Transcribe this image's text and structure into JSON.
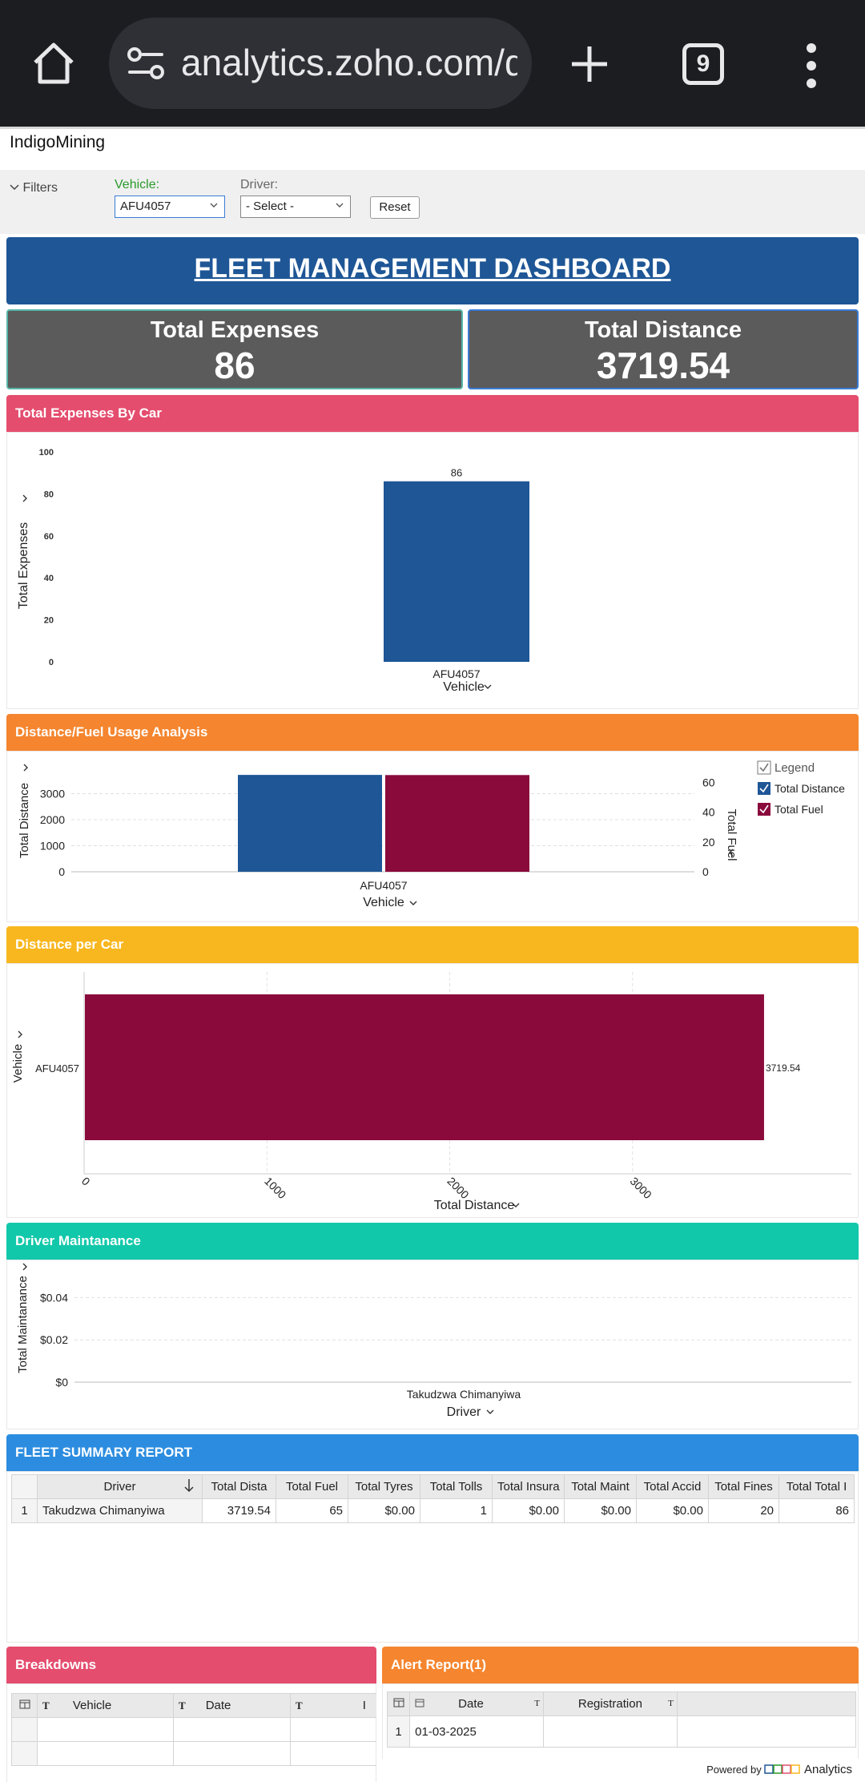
{
  "browser": {
    "url": "analytics.zoho.com/d",
    "tab_count": "9"
  },
  "workspace": {
    "name": "IndigoMining"
  },
  "filters": {
    "toggle_label": "Filters",
    "vehicle_label": "Vehicle:",
    "vehicle_value": "AFU4057",
    "driver_label": "Driver:",
    "driver_value": "- Select -",
    "reset_label": "Reset"
  },
  "dashboard": {
    "title": "FLEET MANAGEMENT DASHBOARD"
  },
  "kpis": {
    "expenses_label": "Total Expenses",
    "expenses_value": "86",
    "distance_label": "Total Distance",
    "distance_value": "3719.54"
  },
  "panels": {
    "expenses_by_car": "Total Expenses By Car",
    "distance_fuel": "Distance/Fuel Usage Analysis",
    "distance_per_car": "Distance per Car",
    "driver_maintenance": "Driver Maintanance",
    "fleet_summary": "FLEET SUMMARY REPORT",
    "breakdowns": "Breakdowns",
    "alert_report": "Alert Report(1)"
  },
  "colors": {
    "blue": "#1e5696",
    "maroon": "#8a0a3c",
    "pink_header": "#e44d6e",
    "orange_header": "#f5852e",
    "yellow_header": "#f8b71f",
    "teal_header": "#12c8aa",
    "summary_header": "#2c8de0"
  },
  "chart_data": [
    {
      "type": "bar",
      "title": "Total Expenses By Car",
      "categories": [
        "AFU4057"
      ],
      "values": [
        86
      ],
      "data_labels": [
        "86"
      ],
      "xlabel": "Vehicle",
      "ylabel": "Total Expenses",
      "ylim": [
        0,
        100
      ],
      "yticks": [
        "0",
        "20",
        "40",
        "60",
        "80",
        "100"
      ]
    },
    {
      "type": "bar",
      "title": "Distance/Fuel Usage Analysis",
      "categories": [
        "AFU4057"
      ],
      "series": [
        {
          "name": "Total Distance",
          "values": [
            3719.54
          ],
          "axis": "left"
        },
        {
          "name": "Total Fuel",
          "values": [
            65
          ],
          "axis": "right"
        }
      ],
      "xlabel": "Vehicle",
      "ylabel": "Total Distance",
      "y2label": "Total Fuel",
      "ylim": [
        0,
        4000
      ],
      "yticks": [
        "0",
        "1000",
        "2000",
        "3000"
      ],
      "y2lim": [
        0,
        70
      ],
      "y2ticks": [
        "0",
        "20",
        "40",
        "60"
      ],
      "legend_title": "Legend",
      "legend": "right"
    },
    {
      "type": "bar",
      "orientation": "horizontal",
      "title": "Distance per Car",
      "categories": [
        "AFU4057"
      ],
      "values": [
        3719.54
      ],
      "data_labels": [
        "3719.54"
      ],
      "xlabel": "Total Distance",
      "ylabel": "Vehicle",
      "xlim": [
        0,
        4000
      ],
      "xticks": [
        "0",
        "1000",
        "2000",
        "3000"
      ]
    },
    {
      "type": "bar",
      "title": "Driver Maintanance",
      "categories": [
        "Takudzwa Chimanyiwa"
      ],
      "values": [
        0
      ],
      "xlabel": "Driver",
      "ylabel": "Total Maintanance",
      "ylim": [
        0,
        0.05
      ],
      "yticks": [
        "$0",
        "$0.02",
        "$0.04"
      ]
    }
  ],
  "summary_table": {
    "columns": [
      "Driver",
      "Total Distance",
      "Total Fuel",
      "Total Tyres",
      "Total Tolls",
      "Total Insurance",
      "Total Maintanance",
      "Total Accidents",
      "Total Fines",
      "Total Total"
    ],
    "columns_display": [
      "Driver",
      "Total Dista",
      "Total Fuel",
      "Total Tyres",
      "Total Tolls",
      "Total Insura",
      "Total Maint",
      "Total Accid",
      "Total Fines",
      "Total Total I"
    ],
    "rows": [
      {
        "index": "1",
        "cells": [
          "Takudzwa Chimanyiwa",
          "3719.54",
          "65",
          "$0.00",
          "1",
          "$0.00",
          "$0.00",
          "$0.00",
          "20",
          "86"
        ]
      }
    ]
  },
  "breakdowns_table": {
    "columns": [
      "Vehicle",
      "Date",
      "I"
    ]
  },
  "alert_table": {
    "columns": [
      "Date",
      "Registration"
    ],
    "rows": [
      {
        "index": "1",
        "date": "01-03-2025",
        "registration": ""
      }
    ]
  },
  "footer": {
    "powered_by": "Powered by",
    "product": "Analytics"
  }
}
